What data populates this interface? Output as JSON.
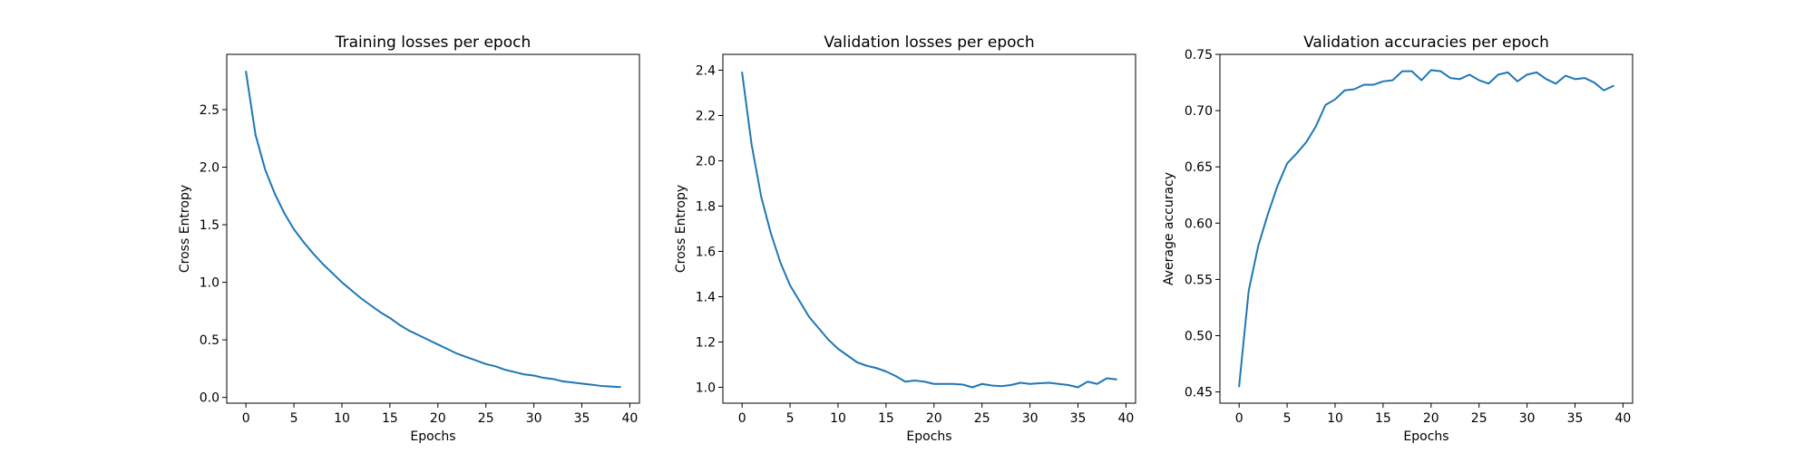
{
  "chart_data": [
    {
      "type": "line",
      "title": "Training losses per epoch",
      "xlabel": "Epochs",
      "ylabel": "Cross Entropy",
      "xlim": [
        -2,
        41
      ],
      "ylim": [
        -0.05,
        2.98
      ],
      "xticks": [
        0,
        5,
        10,
        15,
        20,
        25,
        30,
        35,
        40
      ],
      "yticks": [
        0.0,
        0.5,
        1.0,
        1.5,
        2.0,
        2.5
      ],
      "ytick_labels": [
        "0.0",
        "0.5",
        "1.0",
        "1.5",
        "2.0",
        "2.5"
      ],
      "grid": false,
      "color": "#1f77b4",
      "x": [
        0,
        1,
        2,
        3,
        4,
        5,
        6,
        7,
        8,
        9,
        10,
        11,
        12,
        13,
        14,
        15,
        16,
        17,
        18,
        19,
        20,
        21,
        22,
        23,
        24,
        25,
        26,
        27,
        28,
        29,
        30,
        31,
        32,
        33,
        34,
        35,
        36,
        37,
        38,
        39
      ],
      "y": [
        2.83,
        2.28,
        1.98,
        1.77,
        1.6,
        1.46,
        1.35,
        1.25,
        1.16,
        1.08,
        1.0,
        0.93,
        0.86,
        0.8,
        0.74,
        0.69,
        0.63,
        0.58,
        0.54,
        0.5,
        0.46,
        0.42,
        0.38,
        0.35,
        0.32,
        0.29,
        0.27,
        0.24,
        0.22,
        0.2,
        0.19,
        0.17,
        0.16,
        0.14,
        0.13,
        0.12,
        0.11,
        0.1,
        0.095,
        0.09
      ]
    },
    {
      "type": "line",
      "title": "Validation losses per epoch",
      "xlabel": "Epochs",
      "ylabel": "Cross Entropy",
      "xlim": [
        -2,
        41
      ],
      "ylim": [
        0.93,
        2.47
      ],
      "xticks": [
        0,
        5,
        10,
        15,
        20,
        25,
        30,
        35,
        40
      ],
      "yticks": [
        1.0,
        1.2,
        1.4,
        1.6,
        1.8,
        2.0,
        2.2,
        2.4
      ],
      "ytick_labels": [
        "1.0",
        "1.2",
        "1.4",
        "1.6",
        "1.8",
        "2.0",
        "2.2",
        "2.4"
      ],
      "grid": false,
      "color": "#1f77b4",
      "x": [
        0,
        1,
        2,
        3,
        4,
        5,
        6,
        7,
        8,
        9,
        10,
        11,
        12,
        13,
        14,
        15,
        16,
        17,
        18,
        19,
        20,
        21,
        22,
        23,
        24,
        25,
        26,
        27,
        28,
        29,
        30,
        31,
        32,
        33,
        34,
        35,
        36,
        37,
        38,
        39
      ],
      "y": [
        2.39,
        2.07,
        1.84,
        1.68,
        1.55,
        1.45,
        1.38,
        1.31,
        1.26,
        1.21,
        1.17,
        1.14,
        1.11,
        1.095,
        1.085,
        1.07,
        1.05,
        1.025,
        1.03,
        1.025,
        1.015,
        1.015,
        1.015,
        1.012,
        1.0,
        1.015,
        1.008,
        1.005,
        1.01,
        1.02,
        1.015,
        1.018,
        1.02,
        1.015,
        1.01,
        1.0,
        1.025,
        1.015,
        1.04,
        1.035
      ]
    },
    {
      "type": "line",
      "title": "Validation accuracies per epoch",
      "xlabel": "Epochs",
      "ylabel": "Average accuracy",
      "xlim": [
        -2,
        41
      ],
      "ylim": [
        0.44,
        0.75
      ],
      "xticks": [
        0,
        5,
        10,
        15,
        20,
        25,
        30,
        35,
        40
      ],
      "yticks": [
        0.45,
        0.5,
        0.55,
        0.6,
        0.65,
        0.7,
        0.75
      ],
      "ytick_labels": [
        "0.45",
        "0.50",
        "0.55",
        "0.60",
        "0.65",
        "0.70",
        "0.75"
      ],
      "grid": false,
      "color": "#1f77b4",
      "x": [
        0,
        1,
        2,
        3,
        4,
        5,
        6,
        7,
        8,
        9,
        10,
        11,
        12,
        13,
        14,
        15,
        16,
        17,
        18,
        19,
        20,
        21,
        22,
        23,
        24,
        25,
        26,
        27,
        28,
        29,
        30,
        31,
        32,
        33,
        34,
        35,
        36,
        37,
        38,
        39
      ],
      "y": [
        0.455,
        0.54,
        0.58,
        0.608,
        0.633,
        0.653,
        0.662,
        0.672,
        0.686,
        0.705,
        0.71,
        0.718,
        0.719,
        0.723,
        0.723,
        0.726,
        0.727,
        0.735,
        0.735,
        0.727,
        0.736,
        0.735,
        0.729,
        0.728,
        0.732,
        0.727,
        0.724,
        0.732,
        0.734,
        0.726,
        0.732,
        0.734,
        0.728,
        0.724,
        0.731,
        0.728,
        0.729,
        0.725,
        0.718,
        0.722
      ]
    }
  ]
}
